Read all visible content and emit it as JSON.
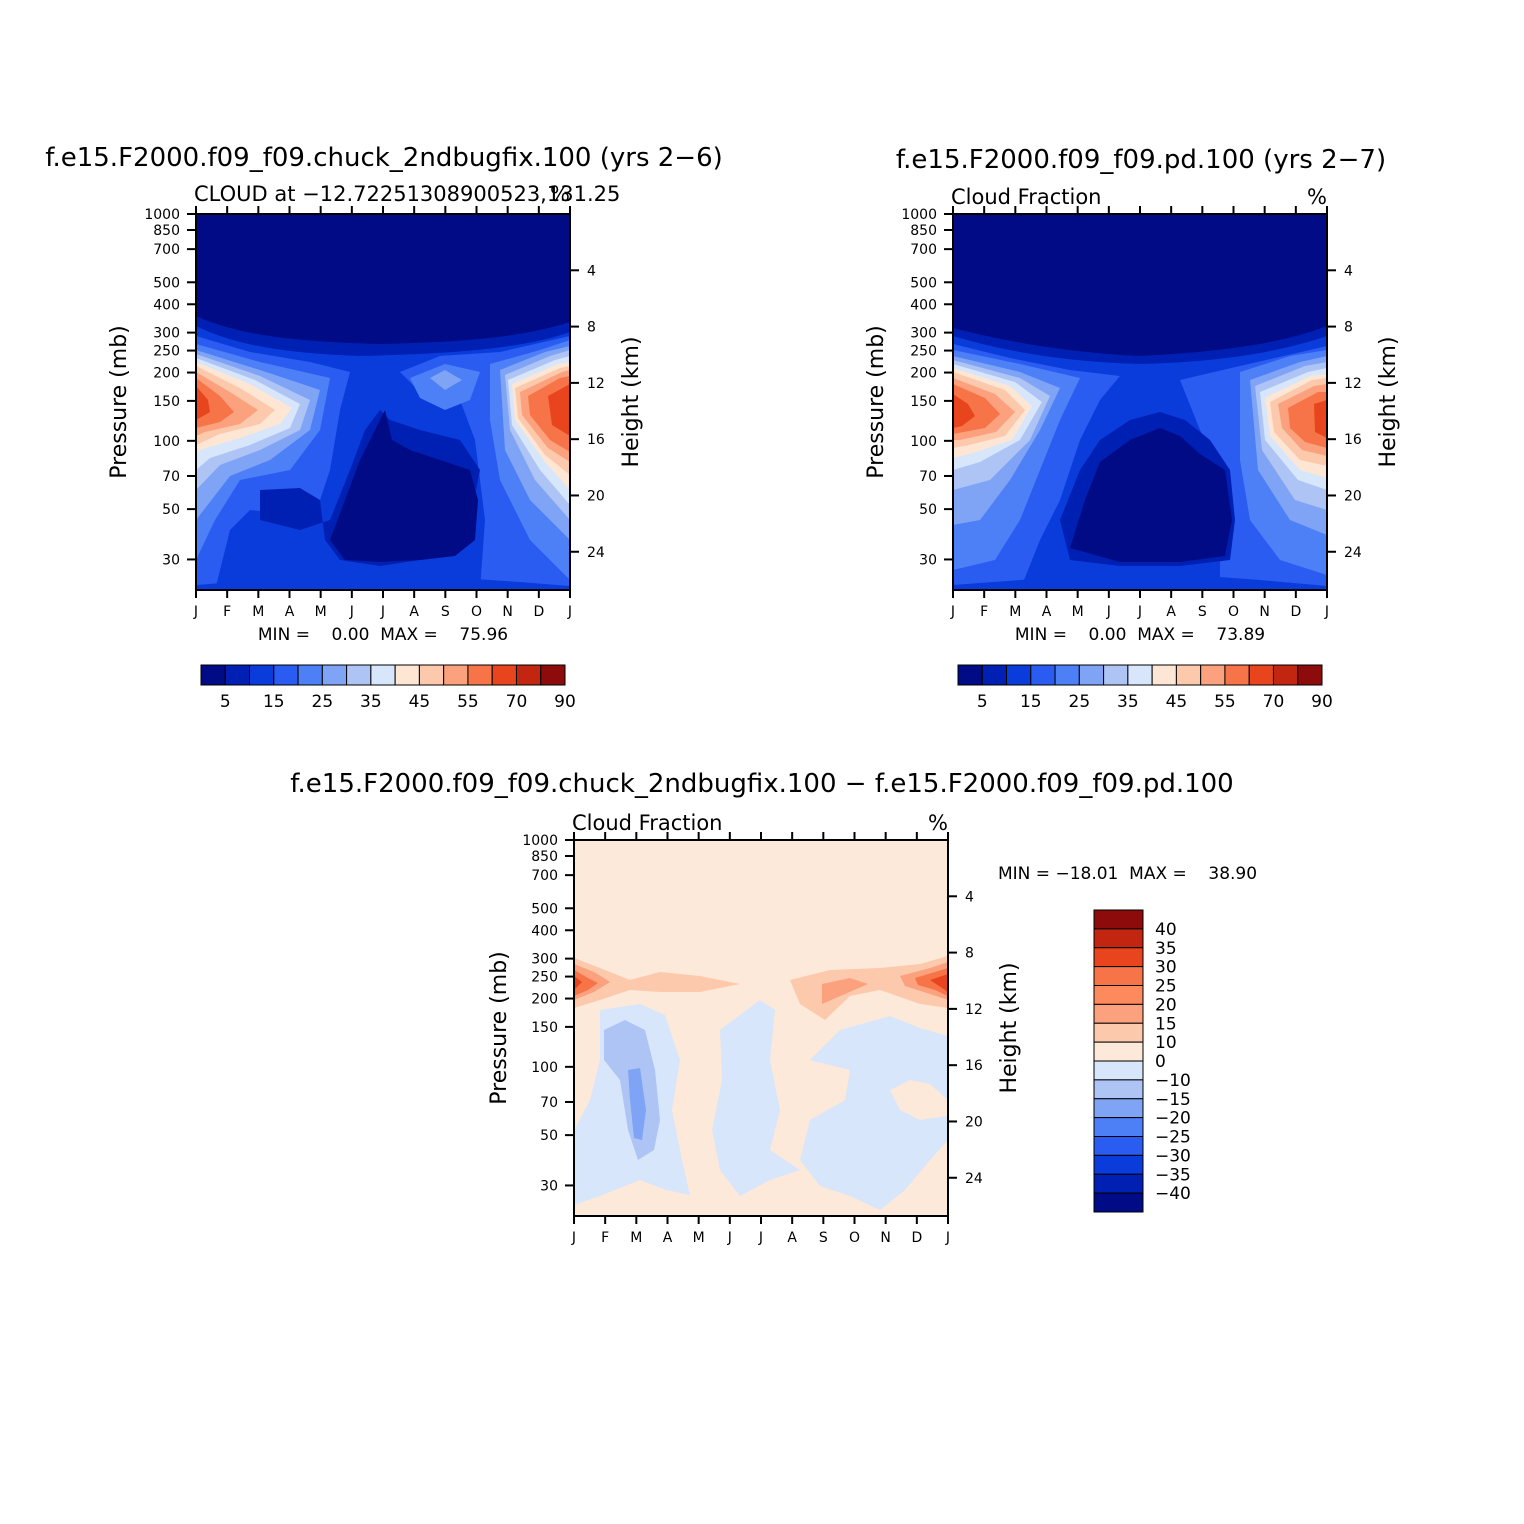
{
  "panels": [
    {
      "title": "f.e15.F2000.f09_f09.chuck_2ndbugfix.100 (yrs 2−6)",
      "subtitle_left": "CLOUD at −12.72251308900523,131.25",
      "subtitle_right": "%",
      "ylabel_left": "Pressure (mb)",
      "ylabel_right": "Height (km)",
      "minmax": "MIN =    0.00  MAX =    75.96"
    },
    {
      "title": "f.e15.F2000.f09_f09.pd.100 (yrs 2−7)",
      "subtitle_left": "Cloud Fraction",
      "subtitle_right": "%",
      "ylabel_left": "Pressure (mb)",
      "ylabel_right": "Height (km)",
      "minmax": "MIN =    0.00  MAX =    73.89"
    },
    {
      "title": "f.e15.F2000.f09_f09.chuck_2ndbugfix.100 − f.e15.F2000.f09_f09.pd.100",
      "subtitle_left": "Cloud Fraction",
      "subtitle_right": "%",
      "ylabel_left": "Pressure (mb)",
      "ylabel_right": "Height (km)",
      "minmax": "MIN = −18.01  MAX =    38.90"
    }
  ],
  "chart_data": [
    {
      "type": "heatmap",
      "title": "f.e15.F2000.f09_f09.chuck_2ndbugfix.100 (yrs 2−6)",
      "x_ticks": [
        "J",
        "F",
        "M",
        "A",
        "M",
        "J",
        "J",
        "A",
        "S",
        "O",
        "N",
        "D",
        "J"
      ],
      "pressure_ticks": [
        30,
        50,
        70,
        100,
        150,
        200,
        250,
        300,
        400,
        500,
        700,
        850,
        1000
      ],
      "height_ticks": [
        24,
        20,
        16,
        12,
        8,
        4
      ],
      "xlabel": "",
      "ylabel": "Pressure (mb)",
      "ylabel_right": "Height (km)",
      "min": 0.0,
      "max": 75.96,
      "colorbar_labels": [
        "5",
        "15",
        "25",
        "35",
        "45",
        "55",
        "70",
        "90"
      ],
      "colors": [
        "#000b85",
        "#0020b3",
        "#0a3cdc",
        "#2a5cf2",
        "#4d7ff6",
        "#7fa4f6",
        "#adc4f5",
        "#d7e6fa",
        "#fde6d4",
        "#fdc9ad",
        "#fca17d",
        "#f77449",
        "#e8441d",
        "#c22610",
        "#8e0b0b"
      ]
    },
    {
      "type": "heatmap",
      "title": "f.e15.F2000.f09_f09.pd.100 (yrs 2−7)",
      "x_ticks": [
        "J",
        "F",
        "M",
        "A",
        "M",
        "J",
        "J",
        "A",
        "S",
        "O",
        "N",
        "D",
        "J"
      ],
      "pressure_ticks": [
        30,
        50,
        70,
        100,
        150,
        200,
        250,
        300,
        400,
        500,
        700,
        850,
        1000
      ],
      "height_ticks": [
        24,
        20,
        16,
        12,
        8,
        4
      ],
      "xlabel": "",
      "ylabel": "Pressure (mb)",
      "ylabel_right": "Height (km)",
      "min": 0.0,
      "max": 73.89,
      "colorbar_labels": [
        "5",
        "15",
        "25",
        "35",
        "45",
        "55",
        "70",
        "90"
      ],
      "colors": [
        "#000b85",
        "#0020b3",
        "#0a3cdc",
        "#2a5cf2",
        "#4d7ff6",
        "#7fa4f6",
        "#adc4f5",
        "#d7e6fa",
        "#fde6d4",
        "#fdc9ad",
        "#fca17d",
        "#f77449",
        "#e8441d",
        "#c22610",
        "#8e0b0b"
      ]
    },
    {
      "type": "heatmap",
      "title": "f.e15.F2000.f09_f09.chuck_2ndbugfix.100 − f.e15.F2000.f09_f09.pd.100",
      "x_ticks": [
        "J",
        "F",
        "M",
        "A",
        "M",
        "J",
        "J",
        "A",
        "S",
        "O",
        "N",
        "D",
        "J"
      ],
      "pressure_ticks": [
        30,
        50,
        70,
        100,
        150,
        200,
        250,
        300,
        400,
        500,
        700,
        850,
        1000
      ],
      "height_ticks": [
        24,
        20,
        16,
        12,
        8,
        4
      ],
      "xlabel": "",
      "ylabel": "Pressure (mb)",
      "ylabel_right": "Height (km)",
      "min": -18.01,
      "max": 38.9,
      "colorbar_labels": [
        "40",
        "35",
        "30",
        "25",
        "20",
        "15",
        "10",
        "0",
        "−10",
        "−15",
        "−20",
        "−25",
        "−30",
        "−35",
        "−40"
      ],
      "colors": [
        "#8e0b0b",
        "#c22610",
        "#e8441d",
        "#f77449",
        "#fc8a5d",
        "#fca17d",
        "#fdc9ad",
        "#fde9d9",
        "#d7e6fa",
        "#adc4f5",
        "#7fa4f6",
        "#4d7ff6",
        "#2a5cf2",
        "#0a3cdc",
        "#0020b3",
        "#000b85"
      ]
    }
  ]
}
